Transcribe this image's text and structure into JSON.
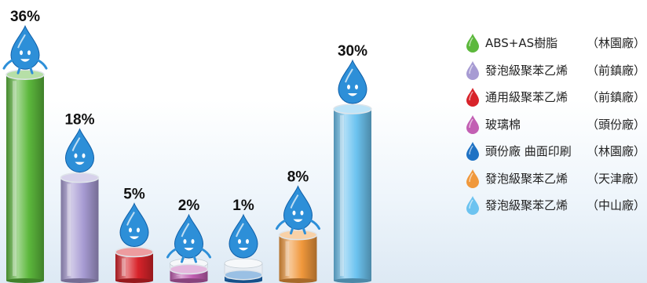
{
  "chart_data": {
    "type": "bar",
    "categories": [
      "ABS+AS樹脂",
      "發泡級聚苯乙烯",
      "通用級聚苯乙烯",
      "玻璃棉",
      "頭份廠 曲面印刷",
      "發泡級聚苯乙烯",
      "發泡級聚苯乙烯"
    ],
    "values": [
      36,
      18,
      5,
      2,
      1,
      8,
      30
    ],
    "data_labels": [
      "36%",
      "18%",
      "5%",
      "2%",
      "1%",
      "8%",
      "30%"
    ],
    "ylim": [
      0,
      40
    ],
    "grid": false,
    "legend_placement": "right",
    "legend": [
      {
        "name": "ABS+AS樹脂",
        "location": "（林園廠）",
        "color": "#5cb83c"
      },
      {
        "name": "發泡級聚苯乙烯",
        "location": "（前鎮廠）",
        "color": "#a79bd3"
      },
      {
        "name": "通用級聚苯乙烯",
        "location": "（前鎮廠）",
        "color": "#d8232a"
      },
      {
        "name": "玻璃棉",
        "location": "（頭份廠）",
        "color": "#c25fb3"
      },
      {
        "name": "頭份廠 曲面印刷",
        "location": "（林園廠）",
        "color": "#1f72c4"
      },
      {
        "name": "發泡級聚苯乙烯",
        "location": "（天津廠）",
        "color": "#f0983c"
      },
      {
        "name": "發泡級聚苯乙烯",
        "location": "（中山廠）",
        "color": "#6cc3f0"
      }
    ]
  }
}
